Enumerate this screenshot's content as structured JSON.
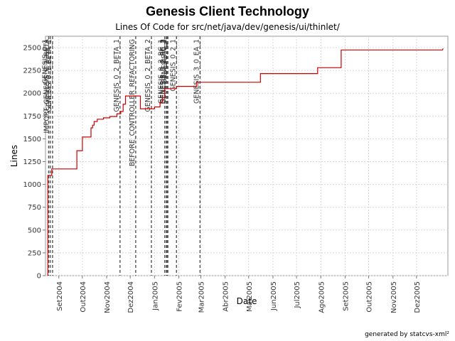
{
  "chart_data": {
    "type": "line",
    "title": "Genesis Client Technology",
    "subtitle": "Lines Of Code for src/net/java/dev/genesis/ui/thinlet/",
    "xlabel": "Date",
    "ylabel": "Lines",
    "footer": "generated by statcvs-xml²",
    "xlim": [
      "2004-08-15",
      "2006-01-10"
    ],
    "ylim": [
      0,
      2625
    ],
    "grid": true,
    "line_color": "#cc0000",
    "yticks": [
      0,
      250,
      500,
      750,
      1000,
      1250,
      1500,
      1750,
      2000,
      2250,
      2500
    ],
    "xticks": [
      {
        "date": "2004-09-01",
        "label": "Set2004"
      },
      {
        "date": "2004-10-01",
        "label": "Out2004"
      },
      {
        "date": "2004-11-01",
        "label": "Nov2004"
      },
      {
        "date": "2004-12-01",
        "label": "Dez2004"
      },
      {
        "date": "2005-01-01",
        "label": "Jan2005"
      },
      {
        "date": "2005-02-01",
        "label": "Fev2005"
      },
      {
        "date": "2005-03-01",
        "label": "Mar2005"
      },
      {
        "date": "2005-04-01",
        "label": "Abr2005"
      },
      {
        "date": "2005-05-01",
        "label": "Mai2005"
      },
      {
        "date": "2005-06-01",
        "label": "Jun2005"
      },
      {
        "date": "2005-07-01",
        "label": "Jul2005"
      },
      {
        "date": "2005-08-01",
        "label": "Ago2005"
      },
      {
        "date": "2005-09-01",
        "label": "Set2005"
      },
      {
        "date": "2005-10-01",
        "label": "Out2005"
      },
      {
        "date": "2005-11-01",
        "label": "Nov2005"
      },
      {
        "date": "2005-12-01",
        "label": "Dez2005"
      }
    ],
    "series": [
      {
        "name": "Lines Of Code",
        "points": [
          [
            "2004-08-18",
            0
          ],
          [
            "2004-08-18",
            1100
          ],
          [
            "2004-08-23",
            1100
          ],
          [
            "2004-08-23",
            1170
          ],
          [
            "2004-09-24",
            1170
          ],
          [
            "2004-09-24",
            1370
          ],
          [
            "2004-10-01",
            1370
          ],
          [
            "2004-10-01",
            1520
          ],
          [
            "2004-10-12",
            1520
          ],
          [
            "2004-10-12",
            1620
          ],
          [
            "2004-10-14",
            1620
          ],
          [
            "2004-10-14",
            1650
          ],
          [
            "2004-10-16",
            1650
          ],
          [
            "2004-10-16",
            1690
          ],
          [
            "2004-10-20",
            1690
          ],
          [
            "2004-10-20",
            1715
          ],
          [
            "2004-10-28",
            1715
          ],
          [
            "2004-10-28",
            1730
          ],
          [
            "2004-11-05",
            1730
          ],
          [
            "2004-11-05",
            1745
          ],
          [
            "2004-11-14",
            1745
          ],
          [
            "2004-11-14",
            1775
          ],
          [
            "2004-11-19",
            1775
          ],
          [
            "2004-11-19",
            1800
          ],
          [
            "2004-11-22",
            1800
          ],
          [
            "2004-11-22",
            1880
          ],
          [
            "2004-11-25",
            1880
          ],
          [
            "2004-11-25",
            1970
          ],
          [
            "2004-12-14",
            1970
          ],
          [
            "2004-12-14",
            1830
          ],
          [
            "2005-01-01",
            1830
          ],
          [
            "2005-01-01",
            1850
          ],
          [
            "2005-01-08",
            1850
          ],
          [
            "2005-01-08",
            1900
          ],
          [
            "2005-01-11",
            1900
          ],
          [
            "2005-01-11",
            1950
          ],
          [
            "2005-01-14",
            1950
          ],
          [
            "2005-01-14",
            2050
          ],
          [
            "2005-01-29",
            2050
          ],
          [
            "2005-01-29",
            2075
          ],
          [
            "2005-02-24",
            2075
          ],
          [
            "2005-02-24",
            2120
          ],
          [
            "2005-05-16",
            2120
          ],
          [
            "2005-05-16",
            2215
          ],
          [
            "2005-07-28",
            2215
          ],
          [
            "2005-07-28",
            2280
          ],
          [
            "2005-08-27",
            2280
          ],
          [
            "2005-08-27",
            2475
          ],
          [
            "2006-01-03",
            2475
          ],
          [
            "2006-01-04",
            2490
          ]
        ]
      }
    ],
    "markers": [
      {
        "date": "2004-08-19",
        "label": "GENESIS_0_1"
      },
      {
        "date": "2004-08-21",
        "label": "IMPORT_GENESIS_0_1_BETA"
      },
      {
        "date": "2004-08-24",
        "label": "GENESIS_0_1_BETA_1"
      },
      {
        "date": "2004-11-18",
        "label": "GENESIS_0_2_BETA_1"
      },
      {
        "date": "2004-12-08",
        "label": "BEFORE_CONTROLLER_REFACTORING"
      },
      {
        "date": "2004-12-28",
        "label": "GENESIS_0_2_BETA_2"
      },
      {
        "date": "2005-01-14",
        "label": "GENESIS_0_2_RC_1"
      },
      {
        "date": "2005-01-16",
        "label": "GENESIS_0_2_RC_2"
      },
      {
        "date": "2005-01-17",
        "label": "GENESIS_0_2_RC_3"
      },
      {
        "date": "2005-01-18",
        "label": "GENESIS_0_2"
      },
      {
        "date": "2005-01-29",
        "label": "GENESIS_0_2_1"
      },
      {
        "date": "2005-02-28",
        "label": "GENESIS_3_0_EA_1"
      }
    ]
  }
}
